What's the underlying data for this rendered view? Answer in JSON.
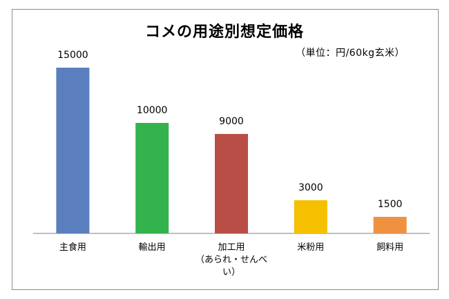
{
  "chart_data": {
    "type": "bar",
    "title": "コメの用途別想定価格",
    "unit_label": "（単位：円/60kg玄米）",
    "categories": [
      "主食用",
      "輸出用",
      "加工用\n（あられ・せんべ\nい）",
      "米粉用",
      "飼料用"
    ],
    "values": [
      15000,
      10000,
      9000,
      3000,
      1500
    ],
    "value_labels": [
      "15000",
      "10000",
      "9000",
      "3000",
      "1500"
    ],
    "colors": [
      "#5b7fbe",
      "#33b24e",
      "#b94e48",
      "#f5c000",
      "#ee9240"
    ],
    "ylim": [
      0,
      16000
    ],
    "grid": false,
    "legend": "none"
  }
}
